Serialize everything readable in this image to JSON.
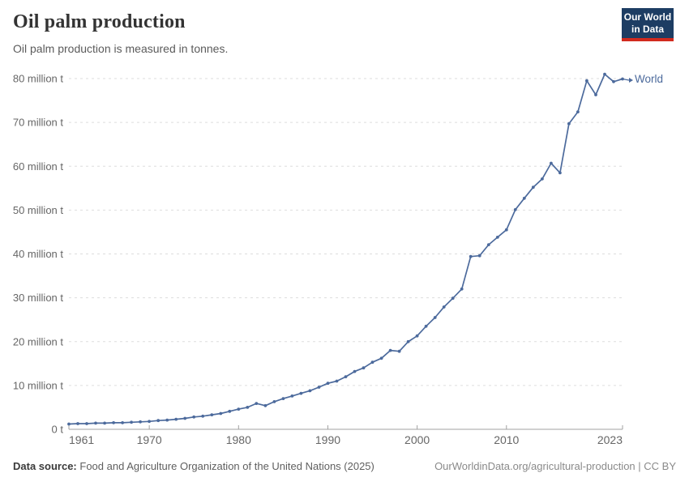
{
  "header": {
    "title": "Oil palm production",
    "subtitle": "Oil palm production is measured in tonnes.",
    "logo": {
      "line1": "Our World",
      "line2": "in Data",
      "bg_color": "#1d3d63",
      "accent_color": "#d12a1e"
    }
  },
  "chart_data": {
    "type": "line",
    "title": "Oil palm production",
    "unit": "tonnes",
    "grid": "horizontal-dashed",
    "legend_position": "end-of-line",
    "xlim": [
      1961,
      2023
    ],
    "ylim": [
      0,
      80
    ],
    "x_ticks": [
      1961,
      1970,
      1980,
      1990,
      2000,
      2010,
      2023
    ],
    "y_ticks": [
      0,
      10,
      20,
      30,
      40,
      50,
      60,
      70,
      80
    ],
    "y_tick_labels": [
      "0 t",
      "10 million t",
      "20 million t",
      "30 million t",
      "40 million t",
      "50 million t",
      "60 million t",
      "70 million t",
      "80 million t"
    ],
    "series": [
      {
        "name": "World",
        "color": "#4c6a9c",
        "x": [
          1961,
          1962,
          1963,
          1964,
          1965,
          1966,
          1967,
          1968,
          1969,
          1970,
          1971,
          1972,
          1973,
          1974,
          1975,
          1976,
          1977,
          1978,
          1979,
          1980,
          1981,
          1982,
          1983,
          1984,
          1985,
          1986,
          1987,
          1988,
          1989,
          1990,
          1991,
          1992,
          1993,
          1994,
          1995,
          1996,
          1997,
          1998,
          1999,
          2000,
          2001,
          2002,
          2003,
          2004,
          2005,
          2006,
          2007,
          2008,
          2009,
          2010,
          2011,
          2012,
          2013,
          2014,
          2015,
          2016,
          2017,
          2018,
          2019,
          2020,
          2021,
          2022,
          2023
        ],
        "values": [
          1.2,
          1.3,
          1.3,
          1.4,
          1.4,
          1.5,
          1.5,
          1.6,
          1.7,
          1.8,
          2.0,
          2.1,
          2.3,
          2.5,
          2.8,
          3.0,
          3.3,
          3.6,
          4.1,
          4.6,
          5.0,
          5.9,
          5.4,
          6.3,
          7.0,
          7.6,
          8.2,
          8.8,
          9.6,
          10.5,
          11.0,
          12.0,
          13.2,
          14.0,
          15.3,
          16.2,
          18.0,
          17.8,
          20.0,
          21.3,
          23.5,
          25.5,
          27.9,
          29.9,
          32.0,
          39.4,
          39.6,
          42.1,
          43.8,
          45.5,
          50.1,
          52.7,
          55.2,
          57.1,
          60.7,
          58.5,
          69.7,
          72.4,
          79.5,
          76.3,
          81.0,
          79.3,
          79.9
        ]
      }
    ]
  },
  "footer": {
    "source_label": "Data source:",
    "source_text": "Food and Agriculture Organization of the United Nations (2025)",
    "rights": "OurWorldinData.org/agricultural-production | CC BY"
  },
  "colors": {
    "series_line": "#4c6a9c",
    "gridline": "#dddddd",
    "axis_line": "#a1a1a1",
    "tick_label": "#666666"
  }
}
